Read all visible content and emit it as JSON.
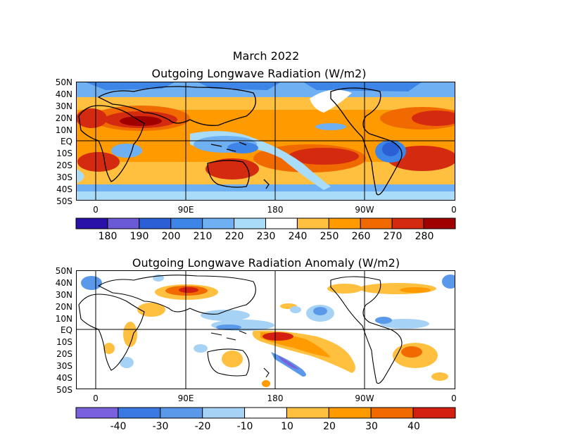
{
  "title": "March 2022",
  "panels": {
    "olr": {
      "title": "Outgoing Longwave Radiation (W/m2)",
      "lat_labels": [
        "50N",
        "40N",
        "30N",
        "20N",
        "10N",
        "EQ",
        "10S",
        "20S",
        "30S",
        "40S",
        "50S"
      ],
      "lon_labels": [
        "0",
        "90E",
        "180",
        "90W",
        "0"
      ]
    },
    "anomaly": {
      "title": "Outgoing Longwave Radiation Anomaly (W/m2)",
      "lat_labels": [
        "50N",
        "40N",
        "30N",
        "20N",
        "10N",
        "EQ",
        "10S",
        "20S",
        "30S",
        "40S",
        "50S"
      ],
      "lon_labels": [
        "0",
        "90E",
        "180",
        "90W",
        "0"
      ]
    }
  },
  "colorbars": {
    "olr": {
      "labels": [
        "180",
        "190",
        "200",
        "210",
        "220",
        "230",
        "240",
        "250",
        "260",
        "270",
        "280"
      ],
      "colors": [
        "#2a12a8",
        "#6a5ad6",
        "#2a5fd6",
        "#3d86e8",
        "#6fb0f2",
        "#a8dcf8",
        "#ffffff",
        "#ffc040",
        "#ff9a00",
        "#f06a00",
        "#d42a10",
        "#a00000"
      ]
    },
    "anomaly": {
      "labels": [
        "-40",
        "-30",
        "-20",
        "-10",
        "10",
        "20",
        "30",
        "40"
      ],
      "colors": [
        "#7a60dc",
        "#3a78e2",
        "#5a98ea",
        "#a6d2f6",
        "#ffffff",
        "#ffc040",
        "#ff9a00",
        "#f06a00",
        "#d42010"
      ]
    }
  }
}
